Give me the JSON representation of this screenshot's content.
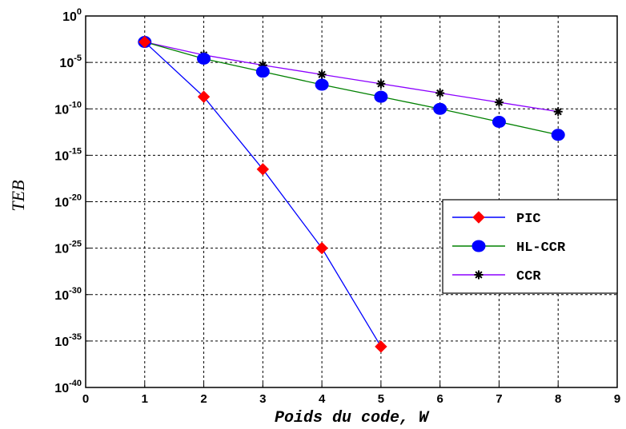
{
  "chart_data": {
    "type": "line",
    "xlabel": "Poids du code, W",
    "ylabel": "TEB",
    "xlim": [
      0,
      9
    ],
    "ylim_exponent": [
      -40,
      0
    ],
    "yscale": "log",
    "xticks": [
      0,
      1,
      2,
      3,
      4,
      5,
      6,
      7,
      8,
      9
    ],
    "yticks": [
      {
        "base": "10",
        "exp": "0",
        "value": 0
      },
      {
        "base": "10",
        "exp": "-5",
        "value": -5
      },
      {
        "base": "10",
        "exp": "-10",
        "value": -10
      },
      {
        "base": "10",
        "exp": "-15",
        "value": -15
      },
      {
        "base": "10",
        "exp": "-20",
        "value": -20
      },
      {
        "base": "10",
        "exp": "-25",
        "value": -25
      },
      {
        "base": "10",
        "exp": "-30",
        "value": -30
      },
      {
        "base": "10",
        "exp": "-35",
        "value": -35
      },
      {
        "base": "10",
        "exp": "-40",
        "value": -40
      }
    ],
    "grid": true,
    "legend_position": "right",
    "series": [
      {
        "name": "PIC",
        "color": "#0000ff",
        "marker": "diamond",
        "marker_color": "#ff0000",
        "x": [
          1,
          2,
          3,
          4,
          5
        ],
        "y_log10": [
          -2.8,
          -8.7,
          -16.5,
          -25.0,
          -35.6
        ]
      },
      {
        "name": "HL-CCR",
        "color": "#008000",
        "marker": "circle",
        "marker_color": "#0000ff",
        "x": [
          1,
          2,
          3,
          4,
          5,
          6,
          7,
          8
        ],
        "y_log10": [
          -2.8,
          -4.6,
          -6.0,
          -7.4,
          -8.7,
          -10.0,
          -11.4,
          -12.8
        ]
      },
      {
        "name": "CCR",
        "color": "#8b00ff",
        "marker": "star",
        "marker_color": "#000000",
        "x": [
          1,
          2,
          3,
          4,
          5,
          6,
          7,
          8
        ],
        "y_log10": [
          -2.8,
          -4.2,
          -5.3,
          -6.3,
          -7.3,
          -8.3,
          -9.3,
          -10.3
        ]
      }
    ]
  }
}
